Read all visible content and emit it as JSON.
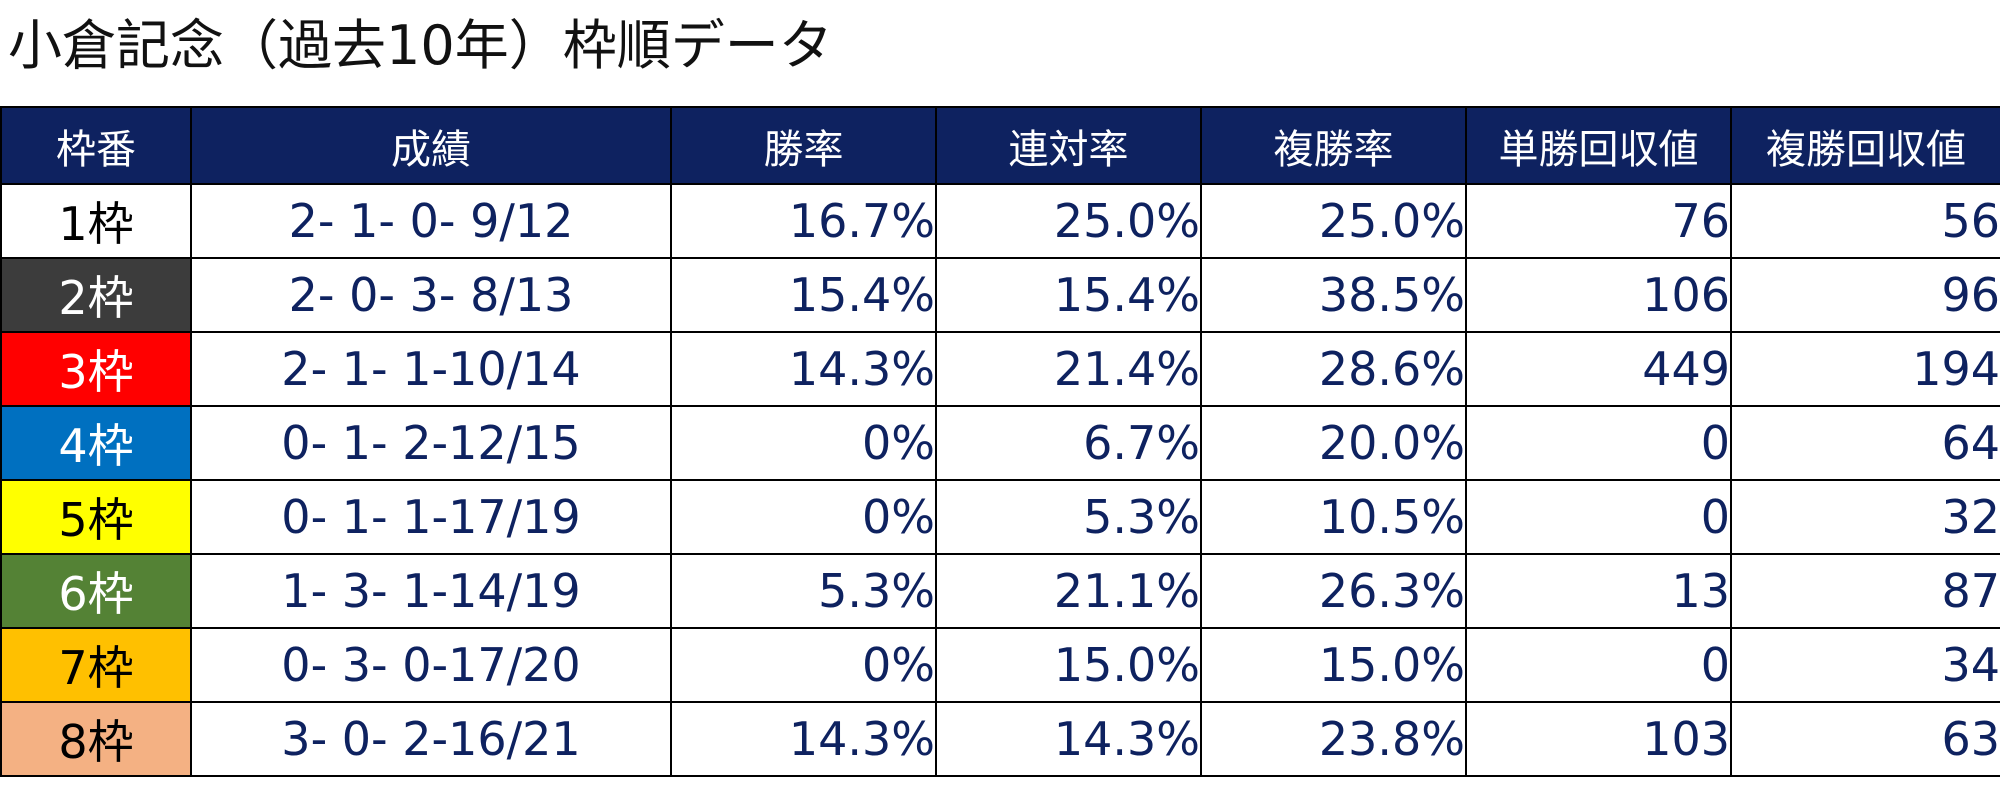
{
  "title": "小倉記念（過去10年）枠順データ",
  "headers": [
    "枠番",
    "成績",
    "勝率",
    "連対率",
    "複勝率",
    "単勝回収値",
    "複勝回収値"
  ],
  "header_color": "#0e2260",
  "value_color": "#0e2260",
  "rows": [
    {
      "frame": "1枠",
      "frame_bg": "#ffffff",
      "frame_fg": "#000000",
      "record": "2- 1- 0- 9/12",
      "win_rate": "16.7%",
      "quinella_rate": "25.0%",
      "show_rate": "25.0%",
      "win_return": "76",
      "show_return": "56"
    },
    {
      "frame": "2枠",
      "frame_bg": "#3c3c3c",
      "frame_fg": "#ffffff",
      "record": "2- 0- 3- 8/13",
      "win_rate": "15.4%",
      "quinella_rate": "15.4%",
      "show_rate": "38.5%",
      "win_return": "106",
      "show_return": "96"
    },
    {
      "frame": "3枠",
      "frame_bg": "#ff0000",
      "frame_fg": "#ffffff",
      "record": "2- 1- 1-10/14",
      "win_rate": "14.3%",
      "quinella_rate": "21.4%",
      "show_rate": "28.6%",
      "win_return": "449",
      "show_return": "194"
    },
    {
      "frame": "4枠",
      "frame_bg": "#0070c0",
      "frame_fg": "#ffffff",
      "record": "0- 1- 2-12/15",
      "win_rate": "0%",
      "quinella_rate": "6.7%",
      "show_rate": "20.0%",
      "win_return": "0",
      "show_return": "64"
    },
    {
      "frame": "5枠",
      "frame_bg": "#ffff00",
      "frame_fg": "#000000",
      "record": "0- 1- 1-17/19",
      "win_rate": "0%",
      "quinella_rate": "5.3%",
      "show_rate": "10.5%",
      "win_return": "0",
      "show_return": "32"
    },
    {
      "frame": "6枠",
      "frame_bg": "#548235",
      "frame_fg": "#ffffff",
      "record": "1- 3- 1-14/19",
      "win_rate": "5.3%",
      "quinella_rate": "21.1%",
      "show_rate": "26.3%",
      "win_return": "13",
      "show_return": "87"
    },
    {
      "frame": "7枠",
      "frame_bg": "#ffc000",
      "frame_fg": "#000000",
      "record": "0- 3- 0-17/20",
      "win_rate": "0%",
      "quinella_rate": "15.0%",
      "show_rate": "15.0%",
      "win_return": "0",
      "show_return": "34"
    },
    {
      "frame": "8枠",
      "frame_bg": "#f4b183",
      "frame_fg": "#000000",
      "record": "3- 0- 2-16/21",
      "win_rate": "14.3%",
      "quinella_rate": "14.3%",
      "show_rate": "23.8%",
      "win_return": "103",
      "show_return": "63"
    }
  ]
}
